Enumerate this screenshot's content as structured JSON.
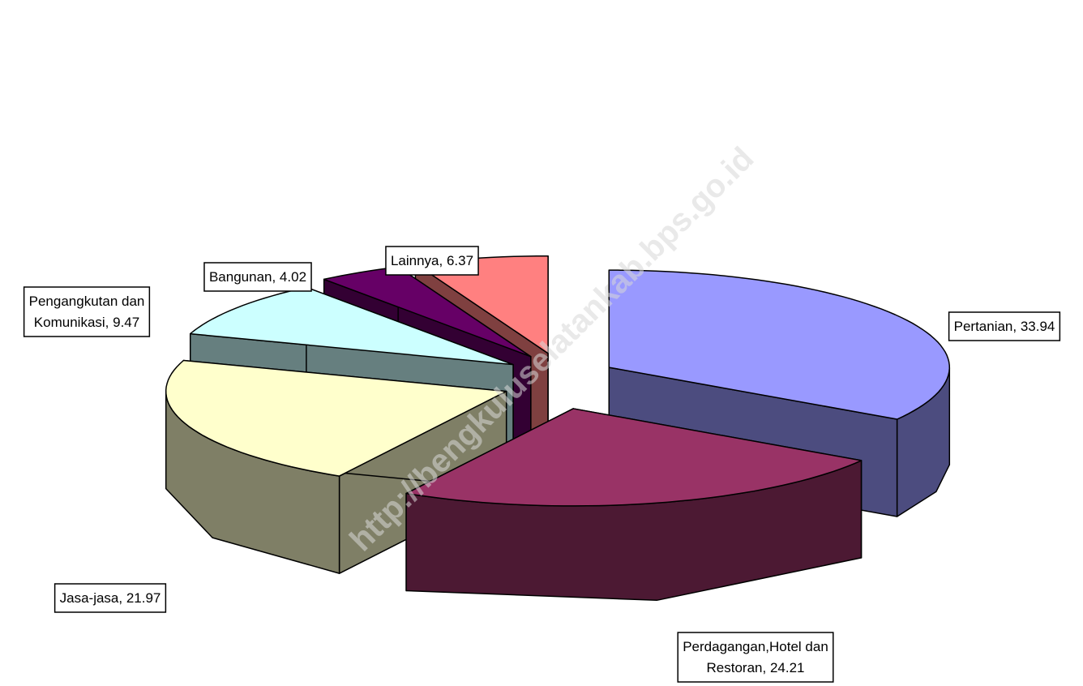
{
  "chart_data": {
    "type": "pie3d",
    "categories": [
      "Pertanian",
      "Perdagangan,Hotel dan Restoran",
      "Jasa-jasa",
      "Pengangkutan dan Komunikasi",
      "Bangunan",
      "Lainnya"
    ],
    "values": [
      33.94,
      24.21,
      21.97,
      9.47,
      4.02,
      6.37
    ],
    "value_labels": [
      "Pertanian, 33.94",
      "Perdagangan,Hotel dan\nRestoran, 24.21",
      "Jasa-jasa, 21.97",
      "Pengangkutan dan\nKomunikasi, 9.47",
      "Bangunan, 4.02",
      "Lainnya, 6.37"
    ],
    "colors": [
      "#9999ff",
      "#993366",
      "#ffffcc",
      "#ccffff",
      "#660066",
      "#ff8080"
    ],
    "watermark": "http://bengkuluselatankab.bps.go.id"
  }
}
